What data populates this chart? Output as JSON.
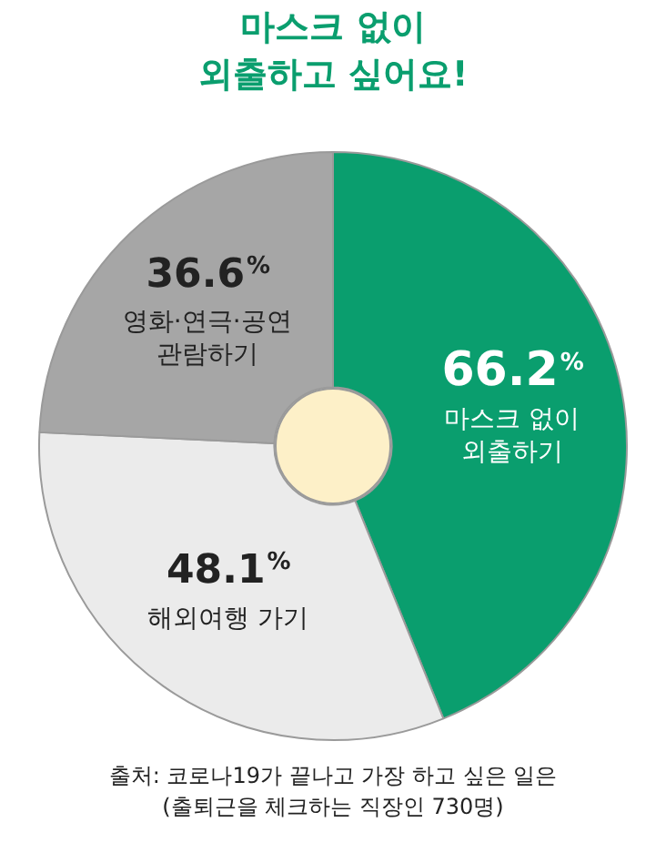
{
  "chart_data": {
    "type": "donut",
    "title": "마스크 없이\n외출하고 싶어요!",
    "categories": [
      "마스크 없이\n외출하기",
      "해외여행 가기",
      "영화·연극·공연\n관람하기"
    ],
    "values": [
      66.2,
      48.1,
      36.6
    ],
    "colors": [
      "#0a9e6e",
      "#ebebeb",
      "#a6a6a6"
    ],
    "value_labels": [
      "66.2%",
      "48.1%",
      "36.6%"
    ],
    "annotations": [
      "출처: 코로나19가 끝나고 가장 하고 싶은 일은\n(출퇴근을 체크하는 직장인 730명)"
    ]
  }
}
